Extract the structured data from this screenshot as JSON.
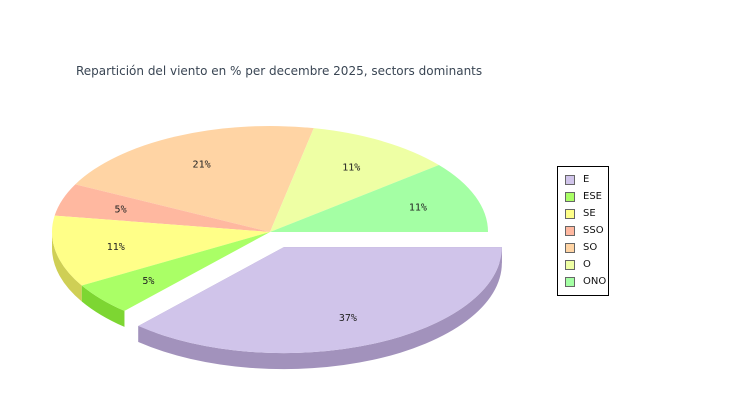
{
  "chart_data": {
    "type": "pie",
    "title": "Repartición del viento en % per decembre 2025, sectors dominants",
    "categories": [
      "E",
      "ESE",
      "SE",
      "SSO",
      "SO",
      "O",
      "ONO"
    ],
    "values": [
      37,
      5,
      11,
      5,
      21,
      11,
      11
    ],
    "labels": [
      "37%",
      "5%",
      "11%",
      "5%",
      "21%",
      "11%",
      "11%"
    ],
    "colors": [
      "#d0c4ea",
      "#aaff66",
      "#ffff88",
      "#ffb8a0",
      "#ffd4a4",
      "#eeffa4",
      "#a4ffa4"
    ],
    "side_colors": [
      "#a292bc",
      "#7dd632",
      "#cfcf55",
      "#d68f78",
      "#d6aa7a",
      "#c2d67a",
      "#74d67a"
    ],
    "exploded": "E",
    "legend_position": "right"
  }
}
